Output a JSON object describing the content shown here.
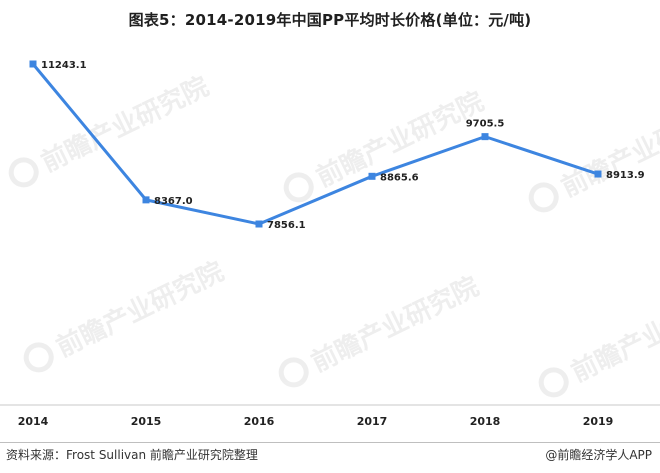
{
  "title": "图表5：2014-2019年中国PP平均时长价格(单位：元/吨)",
  "footer": {
    "source": "资料来源：Frost Sullivan  前瞻产业研究院整理",
    "brand": "@前瞻经济学人APP"
  },
  "watermark": {
    "text": "前瞻产业研究院",
    "icon": "qianzhan-logo-icon"
  },
  "chart_data": {
    "type": "line",
    "title": "图表5：2014-2019年中国PP平均时长价格(单位：元/吨)",
    "xlabel": "",
    "ylabel": "",
    "categories": [
      "2014",
      "2015",
      "2016",
      "2017",
      "2018",
      "2019"
    ],
    "series": [
      {
        "values": [
          11243.1,
          8367.0,
          7856.1,
          8865.6,
          9705.5,
          8913.9
        ],
        "labels": [
          "11243.1",
          "8367.0",
          "7856.1",
          "8865.6",
          "9705.5",
          "8913.9"
        ],
        "color": "#3d85e0"
      }
    ],
    "grid": false,
    "legend": "none"
  }
}
